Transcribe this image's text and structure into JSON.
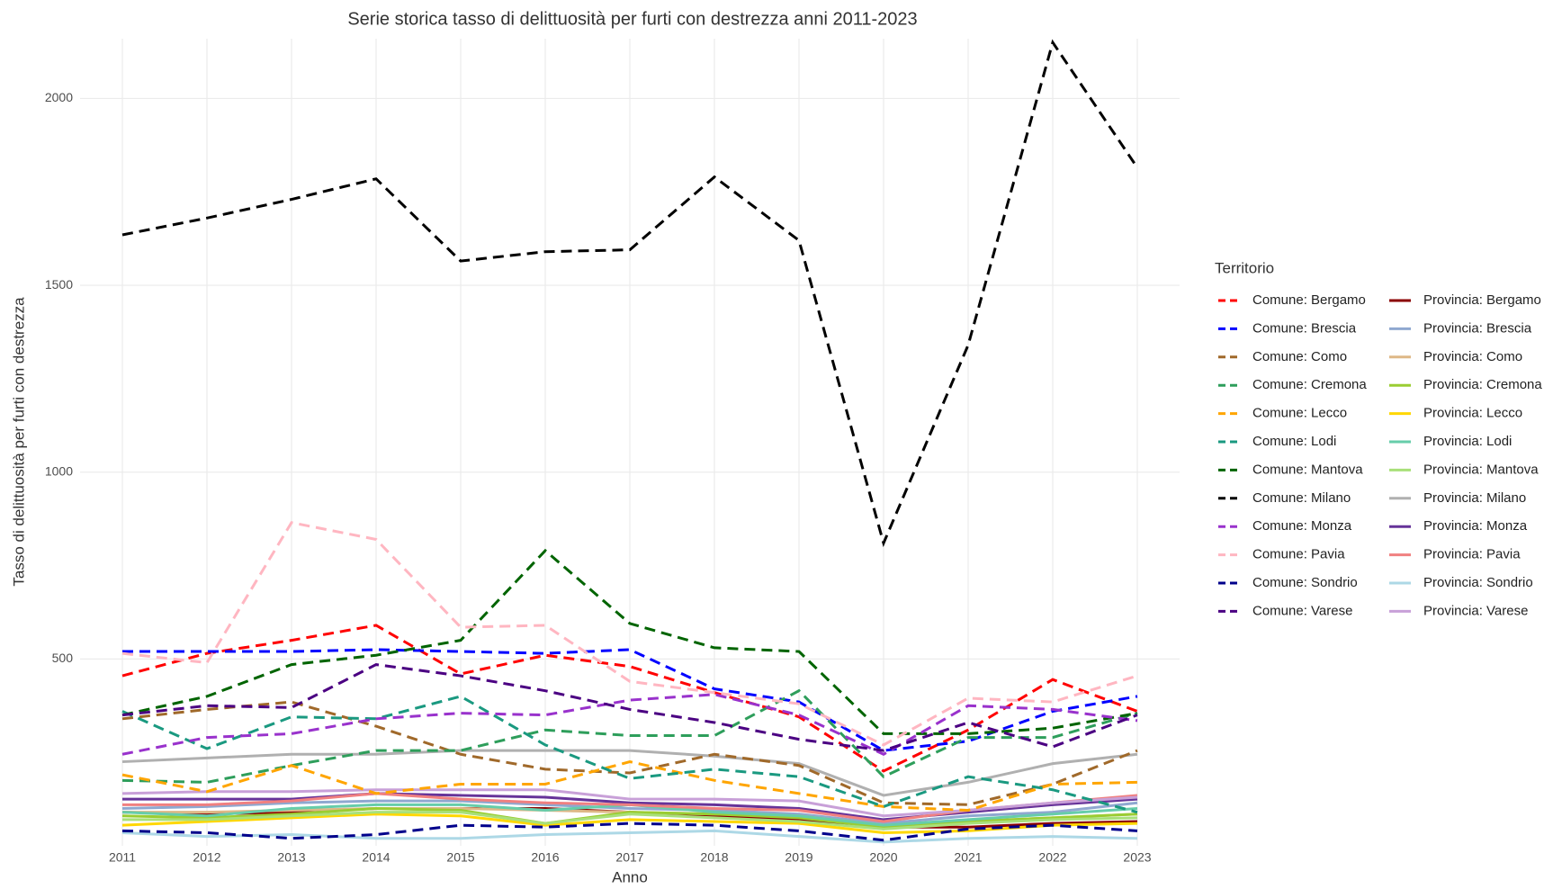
{
  "chart_data": {
    "type": "line",
    "title": "Serie storica tasso di delittuosità per furti con destrezza anni 2011-2023",
    "x_label": "Anno",
    "y_label": "Tasso di delittuosità per furti con destrezza",
    "legend_title": "Territorio",
    "legend": "right",
    "grid": true,
    "x": [
      2011,
      2012,
      2013,
      2014,
      2015,
      2016,
      2017,
      2018,
      2019,
      2020,
      2021,
      2022,
      2023
    ],
    "xlim": [
      2010.5,
      2023.5
    ],
    "xticks": [
      2011,
      2012,
      2013,
      2014,
      2015,
      2016,
      2017,
      2018,
      2019,
      2020,
      2021,
      2022,
      2023
    ],
    "ylim": [
      0,
      2160
    ],
    "yticks": [
      500,
      1000,
      1500,
      2000
    ],
    "series": [
      {
        "name": "Comune: Bergamo",
        "color": "#ff0000",
        "linetype": "dashed",
        "values": [
          455,
          515,
          550,
          590,
          460,
          510,
          480,
          410,
          345,
          200,
          310,
          445,
          360
        ]
      },
      {
        "name": "Comune: Brescia",
        "color": "#0000ff",
        "linetype": "dashed",
        "values": [
          520,
          520,
          520,
          525,
          520,
          515,
          525,
          420,
          385,
          255,
          280,
          360,
          400
        ]
      },
      {
        "name": "Comune: Como",
        "color": "#a0692a",
        "linetype": "dashed",
        "values": [
          340,
          365,
          385,
          320,
          245,
          205,
          195,
          245,
          215,
          115,
          110,
          165,
          255
        ]
      },
      {
        "name": "Comune: Cremona",
        "color": "#2e9e5b",
        "linetype": "dashed",
        "values": [
          175,
          170,
          215,
          255,
          255,
          310,
          295,
          295,
          415,
          185,
          290,
          290,
          355
        ]
      },
      {
        "name": "Comune: Lecco",
        "color": "#ffa500",
        "linetype": "dashed",
        "values": [
          190,
          145,
          215,
          140,
          165,
          165,
          225,
          175,
          140,
          105,
          95,
          165,
          170
        ]
      },
      {
        "name": "Comune: Lodi",
        "color": "#1a9980",
        "linetype": "dashed",
        "values": [
          360,
          260,
          345,
          340,
          400,
          270,
          180,
          205,
          185,
          105,
          185,
          150,
          90
        ]
      },
      {
        "name": "Comune: Mantova",
        "color": "#006400",
        "linetype": "dashed",
        "values": [
          350,
          400,
          485,
          510,
          550,
          790,
          595,
          530,
          520,
          300,
          300,
          315,
          355
        ]
      },
      {
        "name": "Comune: Milano",
        "color": "#000000",
        "linetype": "dashed",
        "values": [
          1635,
          1680,
          1730,
          1785,
          1565,
          1590,
          1595,
          1790,
          1620,
          810,
          1340,
          2150,
          1815
        ]
      },
      {
        "name": "Comune: Monza",
        "color": "#9932cc",
        "linetype": "dashed",
        "values": [
          245,
          290,
          300,
          340,
          355,
          350,
          390,
          405,
          350,
          245,
          375,
          365,
          335
        ]
      },
      {
        "name": "Comune: Pavia",
        "color": "#ffb6c1",
        "linetype": "dashed",
        "values": [
          515,
          490,
          865,
          820,
          585,
          590,
          440,
          410,
          380,
          270,
          395,
          385,
          455
        ]
      },
      {
        "name": "Comune: Sondrio",
        "color": "#00008b",
        "linetype": "dashed",
        "values": [
          40,
          35,
          20,
          30,
          55,
          50,
          60,
          55,
          40,
          15,
          45,
          55,
          40
        ]
      },
      {
        "name": "Comune: Varese",
        "color": "#4b0082",
        "linetype": "dashed",
        "values": [
          350,
          375,
          370,
          485,
          455,
          415,
          365,
          330,
          285,
          255,
          330,
          265,
          350
        ]
      },
      {
        "name": "Provincia: Bergamo",
        "color": "#8b0000",
        "linetype": "solid",
        "values": [
          90,
          85,
          90,
          100,
          100,
          100,
          90,
          80,
          70,
          50,
          50,
          60,
          65
        ]
      },
      {
        "name": "Provincia: Brescia",
        "color": "#8fa8d0",
        "linetype": "solid",
        "values": [
          100,
          105,
          115,
          120,
          120,
          110,
          100,
          95,
          85,
          60,
          80,
          90,
          115
        ]
      },
      {
        "name": "Provincia: Como",
        "color": "#deb887",
        "linetype": "solid",
        "values": [
          90,
          90,
          95,
          100,
          100,
          95,
          90,
          85,
          80,
          55,
          65,
          75,
          85
        ]
      },
      {
        "name": "Provincia: Cremona",
        "color": "#9acd32",
        "linetype": "solid",
        "values": [
          80,
          75,
          85,
          100,
          95,
          60,
          90,
          85,
          75,
          50,
          65,
          75,
          85
        ]
      },
      {
        "name": "Provincia: Lecco",
        "color": "#ffd700",
        "linetype": "solid",
        "values": [
          55,
          65,
          75,
          85,
          80,
          55,
          70,
          65,
          60,
          35,
          40,
          55,
          60
        ]
      },
      {
        "name": "Provincia: Lodi",
        "color": "#66cdaa",
        "linetype": "solid",
        "values": [
          90,
          80,
          100,
          110,
          110,
          95,
          110,
          90,
          80,
          55,
          70,
          85,
          100
        ]
      },
      {
        "name": "Provincia: Mantova",
        "color": "#a8e07a",
        "linetype": "solid",
        "values": [
          70,
          70,
          80,
          90,
          90,
          60,
          85,
          75,
          65,
          45,
          60,
          70,
          75
        ]
      },
      {
        "name": "Provincia: Milano",
        "color": "#b0b0b0",
        "linetype": "solid",
        "values": [
          225,
          235,
          245,
          245,
          255,
          255,
          255,
          240,
          220,
          135,
          170,
          220,
          245
        ]
      },
      {
        "name": "Provincia: Monza",
        "color": "#663399",
        "linetype": "solid",
        "values": [
          125,
          125,
          125,
          140,
          135,
          130,
          115,
          110,
          100,
          70,
          90,
          110,
          125
        ]
      },
      {
        "name": "Provincia: Pavia",
        "color": "#f08080",
        "linetype": "solid",
        "values": [
          110,
          110,
          120,
          140,
          125,
          115,
          110,
          100,
          95,
          65,
          95,
          115,
          135
        ]
      },
      {
        "name": "Provincia: Sondrio",
        "color": "#add8e6",
        "linetype": "solid",
        "values": [
          35,
          25,
          30,
          20,
          20,
          30,
          35,
          40,
          25,
          10,
          20,
          25,
          20
        ]
      },
      {
        "name": "Provincia: Varese",
        "color": "#c8a0d8",
        "linetype": "solid",
        "values": [
          140,
          145,
          145,
          150,
          150,
          150,
          125,
          125,
          120,
          80,
          95,
          115,
          130
        ]
      }
    ]
  }
}
